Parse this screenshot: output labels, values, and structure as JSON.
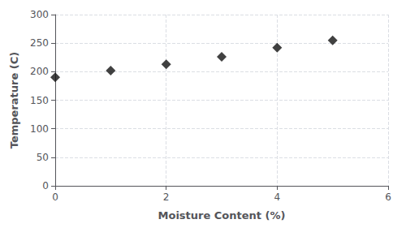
{
  "chart_data": {
    "type": "scatter",
    "x": [
      0,
      1,
      2,
      3,
      4,
      5
    ],
    "values": [
      190,
      202,
      213,
      226,
      242,
      255
    ],
    "xlabel": "Moisture Content (%)",
    "ylabel": "Temperature (C)",
    "xlim": [
      0,
      6
    ],
    "ylim": [
      0,
      300
    ],
    "xticks": [
      0,
      2,
      4,
      6
    ],
    "yticks": [
      0,
      50,
      100,
      150,
      200,
      250,
      300
    ],
    "grid": true,
    "marker": "diamond",
    "color": "#111111"
  }
}
